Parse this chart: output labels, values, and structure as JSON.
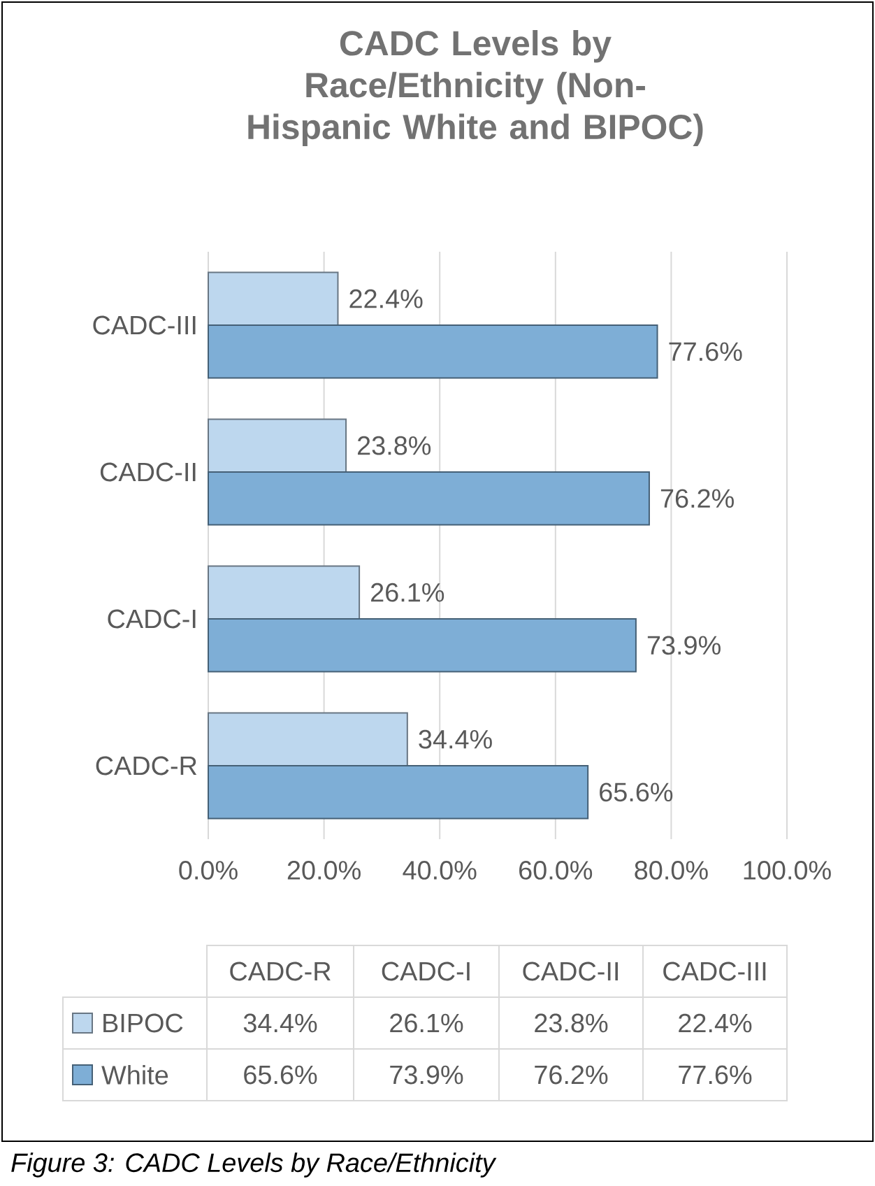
{
  "chart_data": {
    "type": "bar",
    "orientation": "horizontal",
    "title": "CADC Levels by Race/Ethnicity (Non-Hispanic White and BIPOC)",
    "categories": [
      "CADC-III",
      "CADC-II",
      "CADC-I",
      "CADC-R"
    ],
    "series": [
      {
        "name": "BIPOC",
        "color": "#bdd7ee",
        "values": [
          22.4,
          23.8,
          26.1,
          34.4
        ],
        "value_labels": [
          "22.4%",
          "23.8%",
          "26.1%",
          "34.4%"
        ]
      },
      {
        "name": "White",
        "color": "#7eaed6",
        "values": [
          77.6,
          76.2,
          73.9,
          65.6
        ],
        "value_labels": [
          "77.6%",
          "76.2%",
          "73.9%",
          "65.6%"
        ]
      }
    ],
    "xlim": [
      0,
      100
    ],
    "xticks": [
      {
        "value": 0,
        "label": "0.0%"
      },
      {
        "value": 20,
        "label": "20.0%"
      },
      {
        "value": 40,
        "label": "40.0%"
      },
      {
        "value": 60,
        "label": "60.0%"
      },
      {
        "value": 80,
        "label": "80.0%"
      },
      {
        "value": 100,
        "label": "100.0%"
      }
    ],
    "grid": "x",
    "legend": "bottom",
    "annotations": [
      "Figure 3: CADC Levels by Race/Ethnicity"
    ]
  }
}
